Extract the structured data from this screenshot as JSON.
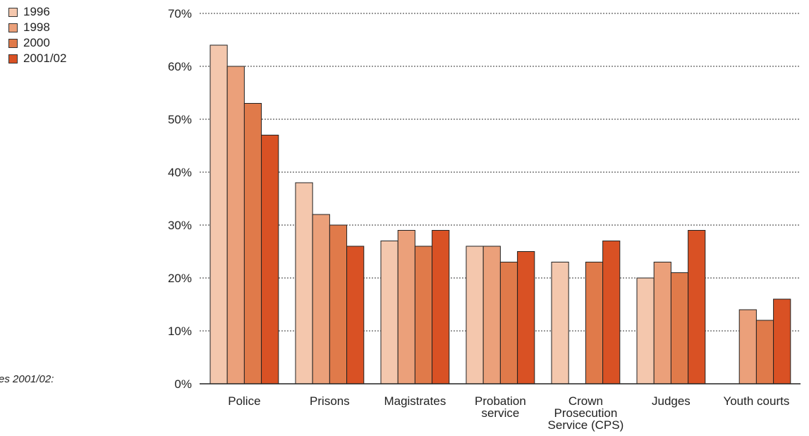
{
  "footnote": "es 2001/02:",
  "chart_data": {
    "type": "bar",
    "categories": [
      [
        "Police"
      ],
      [
        "Prisons"
      ],
      [
        "Magistrates"
      ],
      [
        "Probation",
        "service"
      ],
      [
        "Crown",
        "Prosecution",
        "Service (CPS)"
      ],
      [
        "Judges"
      ],
      [
        "Youth courts"
      ]
    ],
    "series": [
      {
        "name": "1996",
        "color": "#f4c7ad",
        "values": [
          64,
          38,
          27,
          26,
          23,
          20,
          null
        ]
      },
      {
        "name": "1998",
        "color": "#eba07a",
        "values": [
          60,
          32,
          29,
          26,
          null,
          23,
          14
        ]
      },
      {
        "name": "2000",
        "color": "#e07a4a",
        "values": [
          53,
          30,
          26,
          23,
          23,
          21,
          12
        ]
      },
      {
        "name": "2001/02",
        "color": "#d95124",
        "values": [
          47,
          26,
          29,
          25,
          27,
          29,
          16
        ]
      }
    ],
    "yticks": [
      "0%",
      "10%",
      "20%",
      "30%",
      "40%",
      "50%",
      "60%",
      "70%"
    ],
    "ylim": [
      0,
      70
    ],
    "grid": "dotted horizontal",
    "legend": "top-left"
  }
}
